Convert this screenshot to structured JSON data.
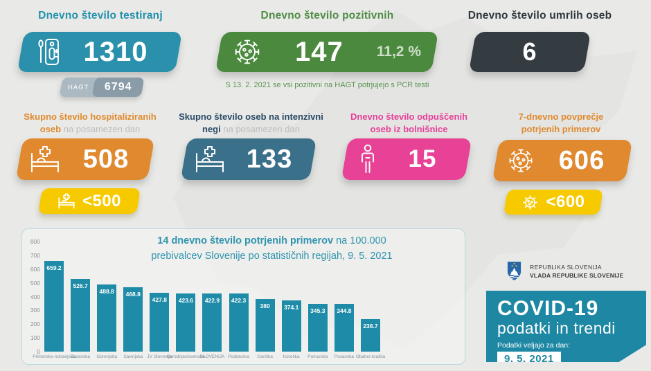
{
  "tests": {
    "heading": "Dnevno število testiranj",
    "value": "1310",
    "hagt_label": "HAGT",
    "hagt_value": "6794"
  },
  "positive": {
    "heading": "Dnevno število pozitivnih",
    "value": "147",
    "percent": "11,2 %",
    "note": "S 13. 2. 2021 se vsi pozitivni na HAGT potrjujejo s PCR testi"
  },
  "deaths": {
    "heading": "Dnevno število umrlih oseb",
    "value": "6"
  },
  "hospitalized": {
    "heading_line1": "Skupno število hospitaliziranih",
    "heading_bold2": "oseb",
    "heading_gray": "na posamezen dan",
    "value": "508",
    "target": "<500"
  },
  "icu": {
    "heading_line1": "Skupno število oseb na intenzivni",
    "heading_bold2": "negi",
    "heading_gray": "na posamezen dan",
    "value": "133"
  },
  "discharged": {
    "heading_line1": "Dnevno število odpuščenih",
    "heading_line2": "oseb iz bolnišnice",
    "value": "15"
  },
  "avg7": {
    "heading_line1": "7-dnevno povprečje",
    "heading_line2": "potrjenih primerov",
    "value": "606",
    "target": "<600"
  },
  "chart_data": {
    "type": "bar",
    "title_bold": "14 dnevno število potrjenih primerov",
    "title_rest": " na 100.000",
    "title_line2": "prebivalcev Slovenije po statističnih regijah, 9. 5. 2021",
    "categories": [
      "Primorsko-notranjska",
      "Zasavska",
      "Gorenjska",
      "Savinjska",
      "JV Slovenija",
      "Osrednjeslovenska",
      "SLOVENIJA",
      "Podravska",
      "Goriška",
      "Koroška",
      "Pomurska",
      "Posavska",
      "Obalno-kraška"
    ],
    "values": [
      659.2,
      526.7,
      488.8,
      468.8,
      427.8,
      423.6,
      422.9,
      422.3,
      380,
      374.1,
      345.3,
      344.8,
      238.7
    ],
    "value_labels": [
      "659.2",
      "526.7",
      "488.8",
      "468.8",
      "427.8",
      "423.6",
      "422.9",
      "422.3",
      "380",
      "374.1",
      "345.3",
      "344.8",
      "238.7"
    ],
    "xlabel": "",
    "ylabel": "",
    "ylim": [
      0,
      800
    ],
    "yticks": [
      0,
      100,
      200,
      300,
      400,
      500,
      600,
      700,
      800
    ],
    "grid": false,
    "legend": "none",
    "bar_color": "#1e8ca8"
  },
  "footer": {
    "gov_line1": "REPUBLIKA SLOVENIJA",
    "gov_line2": "VLADA REPUBLIKE SLOVENIJE",
    "covid_title": "COVID-19",
    "covid_subtitle": "podatki in trendi",
    "date_label": "Podatki veljajo za dan:",
    "date_value": "9. 5. 2021"
  },
  "icons": [
    "test-kit-icon",
    "virus-icon",
    "hospital-bed-icon",
    "person-icon",
    "coat-of-arms-icon"
  ],
  "colors": {
    "bg": "#e9e9e7",
    "teal": "#2a90ab",
    "teal_text": "#2391ad",
    "green": "#4b8a3e",
    "green_text": "#4f8c46",
    "note_green": "#5a9350",
    "dark": "#343b41",
    "dark_text": "#2f373b",
    "orange": "#e0892f",
    "orange_text": "#e08a2e",
    "steel": "#3a7089",
    "navy_text": "#2a4a66",
    "pink": "#e74295",
    "pink_text": "#e73f99",
    "yellow": "#f7ca00",
    "gray_sub": "#b9bdbe",
    "hagt_outer": "#aab9c2",
    "hagt_inner": "#8a9ca8",
    "bar": "#1e8ca8",
    "chart_text": "#2e94ae",
    "axis_text": "#8a9095",
    "xlabel_text": "#7f929e",
    "panel_border": "#b9d8e0",
    "covid_box": "#1e87a3",
    "gov_text": "#3a3a3a"
  }
}
